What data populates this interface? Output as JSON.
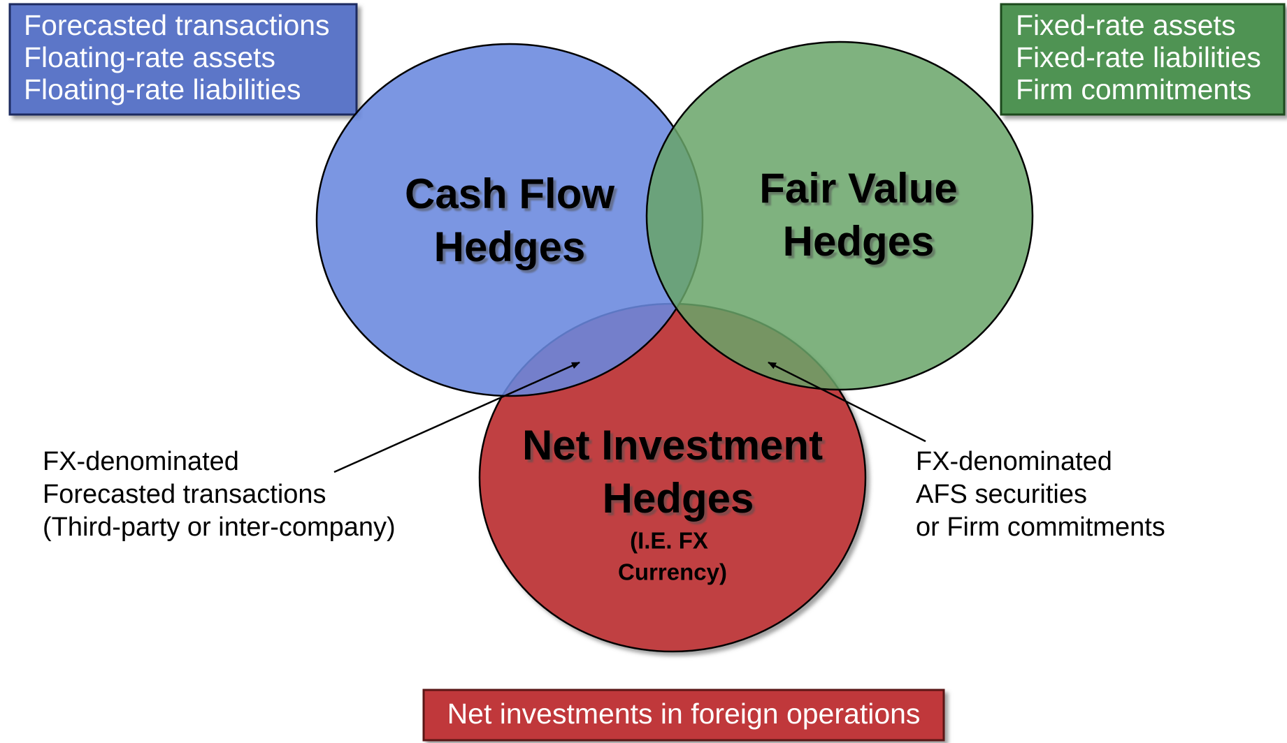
{
  "boxes": {
    "cash_flow": [
      "Forecasted transactions",
      "Floating-rate assets",
      "Floating-rate liabilities"
    ],
    "fair_value": [
      "Fixed-rate assets",
      "Fixed-rate liabilities",
      "Firm commitments"
    ],
    "net_investment": [
      "Net investments in foreign operations"
    ]
  },
  "circles": {
    "cash_flow": [
      "Cash Flow",
      "Hedges"
    ],
    "fair_value": [
      "Fair Value",
      "Hedges"
    ],
    "net_investment": [
      "Net Investment",
      "Hedges"
    ],
    "net_investment_note": [
      "(I.E. FX",
      "Currency)"
    ]
  },
  "annotations": {
    "left": [
      "FX-denominated",
      "Forecasted transactions",
      "(Third-party or inter-company)"
    ],
    "right": [
      "FX-denominated",
      "AFS securities",
      "or Firm commitments"
    ]
  }
}
